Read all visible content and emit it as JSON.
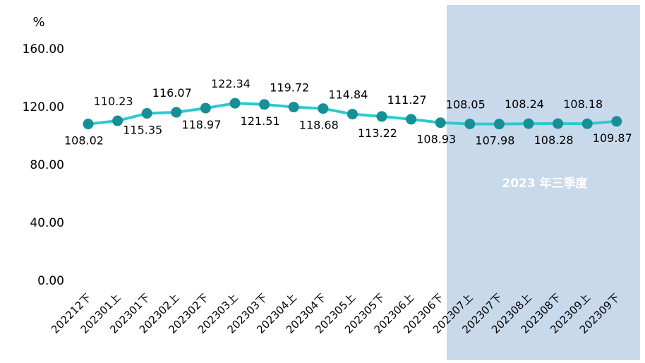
{
  "chart_data": {
    "type": "line",
    "unit_label": "%",
    "categories": [
      "202212下",
      "202301上",
      "202301下",
      "202302上",
      "202302下",
      "202303上",
      "202303下",
      "202304上",
      "202304下",
      "202305上",
      "202305下",
      "202306上",
      "202306下",
      "202307上",
      "202307下",
      "202308上",
      "202308下",
      "202309上",
      "202309下"
    ],
    "series": [
      {
        "values": [
          108.02,
          110.23,
          115.35,
          116.07,
          118.97,
          122.34,
          121.51,
          119.72,
          118.68,
          114.84,
          113.22,
          111.27,
          108.93,
          108.05,
          107.98,
          108.24,
          108.28,
          108.18,
          109.87
        ]
      }
    ],
    "y_ticks": [
      "0.00",
      "40.00",
      "80.00",
      "120.00",
      "160.00"
    ],
    "ylim": [
      0,
      160
    ],
    "grid": false,
    "highlight": {
      "label": "2023 年三季度",
      "from_category": "202306下",
      "to_category": "202309下",
      "color": "#c9d9ec"
    },
    "colors": {
      "line": "#2ec9cf",
      "marker": "#168f96"
    }
  }
}
